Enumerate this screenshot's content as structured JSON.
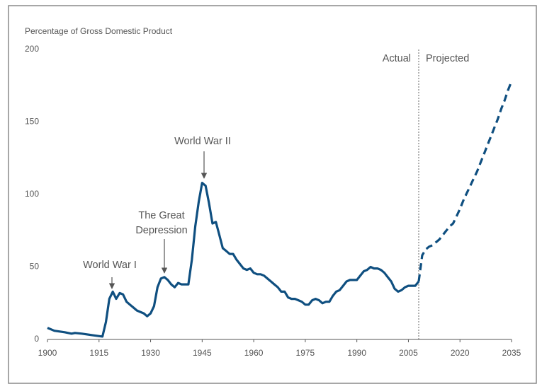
{
  "chart_data": {
    "type": "line",
    "y_axis_label": "Percentage of Gross Domestic Product",
    "xlim": [
      1900,
      2035
    ],
    "xticks": [
      1900,
      1915,
      1930,
      1945,
      1960,
      1975,
      1990,
      2005,
      2020,
      2035
    ],
    "ylim": [
      0,
      200
    ],
    "yticks": [
      0,
      50,
      100,
      150,
      200
    ],
    "grid": false,
    "divider_x": 2008,
    "divider_labels": [
      "Actual",
      "Projected"
    ],
    "annotations": [
      "World War I",
      "The Great\nDepression",
      "World War II"
    ],
    "series": [
      {
        "name": "Actual",
        "color": "#0f4f80",
        "dash": false,
        "x": [
          1900,
          1902,
          1905,
          1907,
          1908,
          1910,
          1913,
          1916,
          1917,
          1918,
          1919,
          1920,
          1921,
          1922,
          1923,
          1924,
          1925,
          1926,
          1927,
          1928,
          1929,
          1930,
          1931,
          1932,
          1933,
          1934,
          1935,
          1936,
          1937,
          1938,
          1939,
          1940,
          1941,
          1942,
          1943,
          1944,
          1945,
          1946,
          1947,
          1948,
          1949,
          1950,
          1951,
          1952,
          1953,
          1954,
          1955,
          1956,
          1957,
          1958,
          1959,
          1960,
          1961,
          1962,
          1963,
          1964,
          1965,
          1966,
          1967,
          1968,
          1969,
          1970,
          1971,
          1972,
          1973,
          1974,
          1975,
          1976,
          1977,
          1978,
          1979,
          1980,
          1981,
          1982,
          1983,
          1984,
          1985,
          1986,
          1987,
          1988,
          1989,
          1990,
          1991,
          1992,
          1993,
          1994,
          1995,
          1996,
          1997,
          1998,
          1999,
          2000,
          2001,
          2002,
          2003,
          2004,
          2005,
          2006,
          2007,
          2008
        ],
        "values": [
          8,
          6,
          5,
          4,
          4.5,
          4,
          3,
          2,
          12,
          28,
          33,
          28,
          32,
          31,
          26,
          24,
          22,
          20,
          19,
          18,
          16,
          18,
          23,
          36,
          42,
          43,
          41,
          38,
          36,
          39,
          38,
          38,
          38,
          55,
          78,
          95,
          108,
          106,
          94,
          80,
          81,
          72,
          63,
          61,
          59,
          59,
          55,
          52,
          49,
          48,
          49,
          46,
          45,
          45,
          44,
          42,
          40,
          38,
          36,
          33,
          33,
          29,
          28,
          28,
          27,
          26,
          24,
          24,
          27,
          28,
          27,
          25,
          26,
          26,
          30,
          33,
          34,
          37,
          40,
          41,
          41,
          41,
          44,
          47,
          48,
          50,
          49,
          49,
          48,
          46,
          43,
          40,
          35,
          33,
          34,
          36,
          37,
          37,
          37,
          40
        ]
      },
      {
        "name": "Projected",
        "color": "#0f4f80",
        "dash": true,
        "x": [
          2008,
          2009,
          2010,
          2011,
          2012,
          2013,
          2014,
          2015,
          2016,
          2017,
          2018,
          2019,
          2020,
          2021,
          2022,
          2023,
          2024,
          2025,
          2026,
          2027,
          2028,
          2029,
          2030,
          2031,
          2032,
          2033,
          2034,
          2035
        ],
        "values": [
          40,
          58,
          62,
          64,
          65,
          67,
          69,
          72,
          75,
          78,
          80,
          85,
          90,
          96,
          101,
          106,
          111,
          116,
          122,
          128,
          134,
          140,
          146,
          152,
          159,
          165,
          172,
          178
        ]
      }
    ]
  }
}
